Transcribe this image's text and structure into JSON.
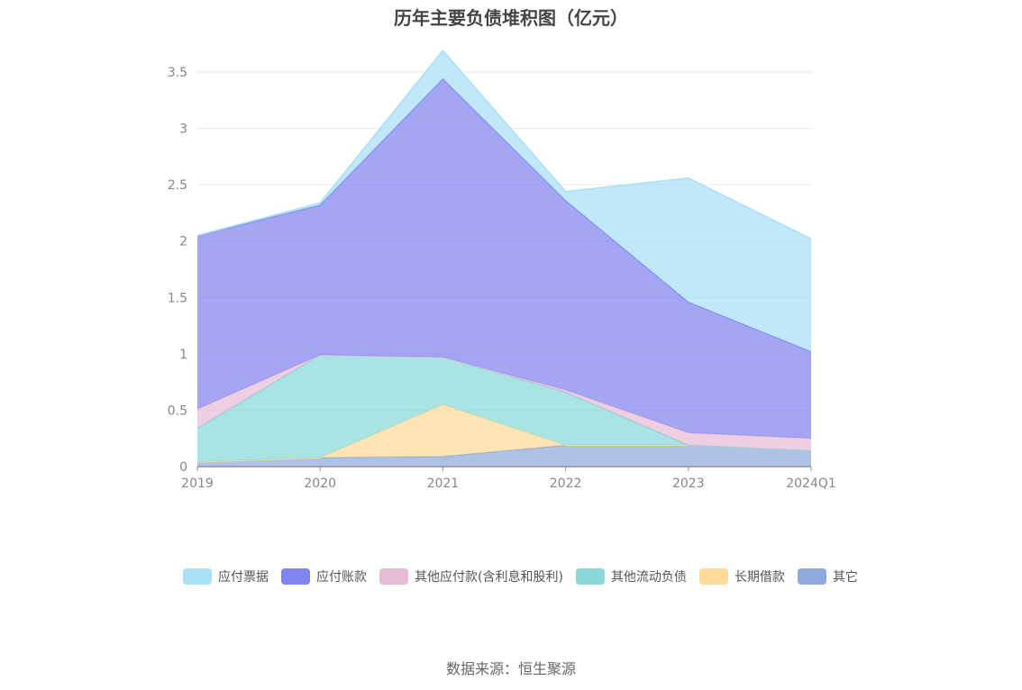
{
  "chart_data": {
    "type": "area",
    "stacked": true,
    "title": "历年主要负债堆积图（亿元）",
    "categories": [
      "2019",
      "2020",
      "2021",
      "2022",
      "2023",
      "2024Q1"
    ],
    "ylim": [
      0,
      3.5
    ],
    "yticks": [
      "0",
      "0.5",
      "1",
      "1.5",
      "2",
      "2.5",
      "3",
      "3.5"
    ],
    "grid": true,
    "legend_position": "bottom",
    "series": [
      {
        "name": "其它",
        "color": "#8FAADC",
        "values": [
          0.04,
          0.08,
          0.09,
          0.19,
          0.19,
          0.14
        ]
      },
      {
        "name": "长期借款",
        "color": "#FFDB99",
        "values": [
          0.0,
          0.0,
          0.46,
          0.0,
          0.0,
          0.0
        ]
      },
      {
        "name": "其他流动负债",
        "color": "#88D8D8",
        "values": [
          0.3,
          0.91,
          0.42,
          0.47,
          0.0,
          0.0
        ]
      },
      {
        "name": "其他应付款(含利息和股利)",
        "color": "#E8BBD8",
        "values": [
          0.17,
          0.0,
          0.0,
          0.02,
          0.11,
          0.11
        ]
      },
      {
        "name": "应付账款",
        "color": "#8184F0",
        "values": [
          1.54,
          1.33,
          2.47,
          1.68,
          1.16,
          0.77
        ]
      },
      {
        "name": "应付票据",
        "color": "#A9DFF7",
        "values": [
          0.0,
          0.02,
          0.25,
          0.08,
          1.1,
          1.0
        ]
      }
    ]
  },
  "legend_order": [
    "应付票据",
    "应付账款",
    "其他应付款(含利息和股利)",
    "其他流动负债",
    "长期借款",
    "其它"
  ],
  "source": "数据来源：恒生聚源"
}
